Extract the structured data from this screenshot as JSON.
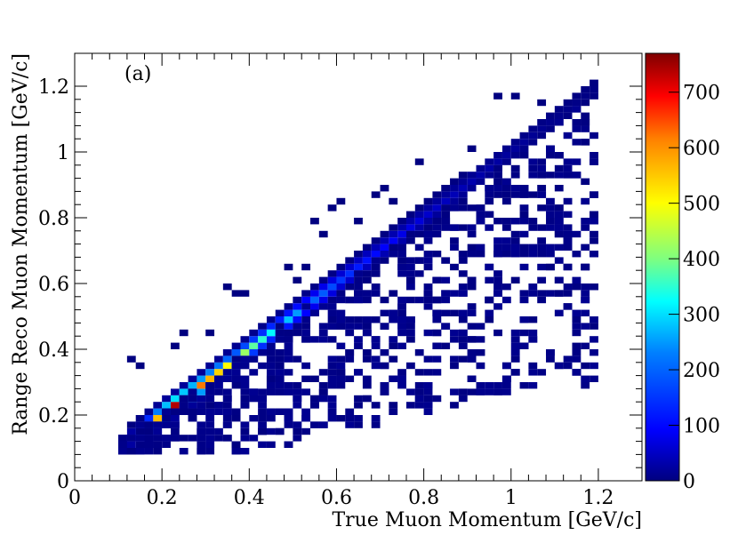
{
  "chart_data": {
    "type": "heatmap",
    "panel_label": "(a)",
    "xlabel": "True Muon Momentum [GeV/c]",
    "ylabel": "Range Reco Muon Momentum [GeV/c]",
    "xlim": [
      0,
      1.3
    ],
    "ylim": [
      0,
      1.3
    ],
    "x_ticks": [
      0,
      0.2,
      0.4,
      0.6,
      0.8,
      1,
      1.2
    ],
    "x_tick_labels": [
      "0",
      "0.2",
      "0.4",
      "0.6",
      "0.8",
      "1",
      "1.2"
    ],
    "y_ticks": [
      0,
      0.2,
      0.4,
      0.6,
      0.8,
      1,
      1.2
    ],
    "y_tick_labels": [
      "0",
      "0.2",
      "0.4",
      "0.6",
      "0.8",
      "1",
      "1.2"
    ],
    "colorbar": {
      "min": 0,
      "max": 770,
      "ticks": [
        0,
        100,
        200,
        300,
        400,
        500,
        600,
        700
      ],
      "tick_labels": [
        "0",
        "100",
        "200",
        "300",
        "400",
        "500",
        "600",
        "700"
      ],
      "colormap": "rainbow"
    },
    "bin_width": 0.02,
    "diagonal_peak": [
      [
        0.11,
        30
      ],
      [
        0.13,
        60
      ],
      [
        0.15,
        160
      ],
      [
        0.17,
        340
      ],
      [
        0.19,
        560
      ],
      [
        0.21,
        680
      ],
      [
        0.23,
        740
      ],
      [
        0.25,
        700
      ],
      [
        0.27,
        660
      ],
      [
        0.29,
        620
      ],
      [
        0.31,
        570
      ],
      [
        0.33,
        540
      ],
      [
        0.35,
        500
      ],
      [
        0.37,
        460
      ],
      [
        0.39,
        420
      ],
      [
        0.41,
        380
      ],
      [
        0.43,
        350
      ],
      [
        0.45,
        320
      ],
      [
        0.47,
        300
      ],
      [
        0.49,
        280
      ],
      [
        0.51,
        250
      ],
      [
        0.53,
        230
      ],
      [
        0.55,
        200
      ],
      [
        0.57,
        190
      ],
      [
        0.59,
        170
      ],
      [
        0.61,
        150
      ],
      [
        0.63,
        140
      ],
      [
        0.65,
        120
      ],
      [
        0.67,
        110
      ],
      [
        0.69,
        100
      ],
      [
        0.71,
        90
      ],
      [
        0.73,
        85
      ],
      [
        0.75,
        75
      ],
      [
        0.77,
        70
      ],
      [
        0.79,
        65
      ],
      [
        0.81,
        55
      ],
      [
        0.83,
        50
      ],
      [
        0.85,
        45
      ],
      [
        0.87,
        40
      ],
      [
        0.89,
        38
      ],
      [
        0.91,
        33
      ],
      [
        0.93,
        30
      ],
      [
        0.95,
        28
      ],
      [
        0.97,
        25
      ],
      [
        0.99,
        22
      ],
      [
        1.01,
        20
      ],
      [
        1.03,
        18
      ],
      [
        1.05,
        15
      ],
      [
        1.07,
        12
      ],
      [
        1.09,
        10
      ],
      [
        1.11,
        8
      ],
      [
        1.13,
        7
      ],
      [
        1.15,
        6
      ],
      [
        1.17,
        4
      ],
      [
        1.19,
        3
      ]
    ]
  }
}
